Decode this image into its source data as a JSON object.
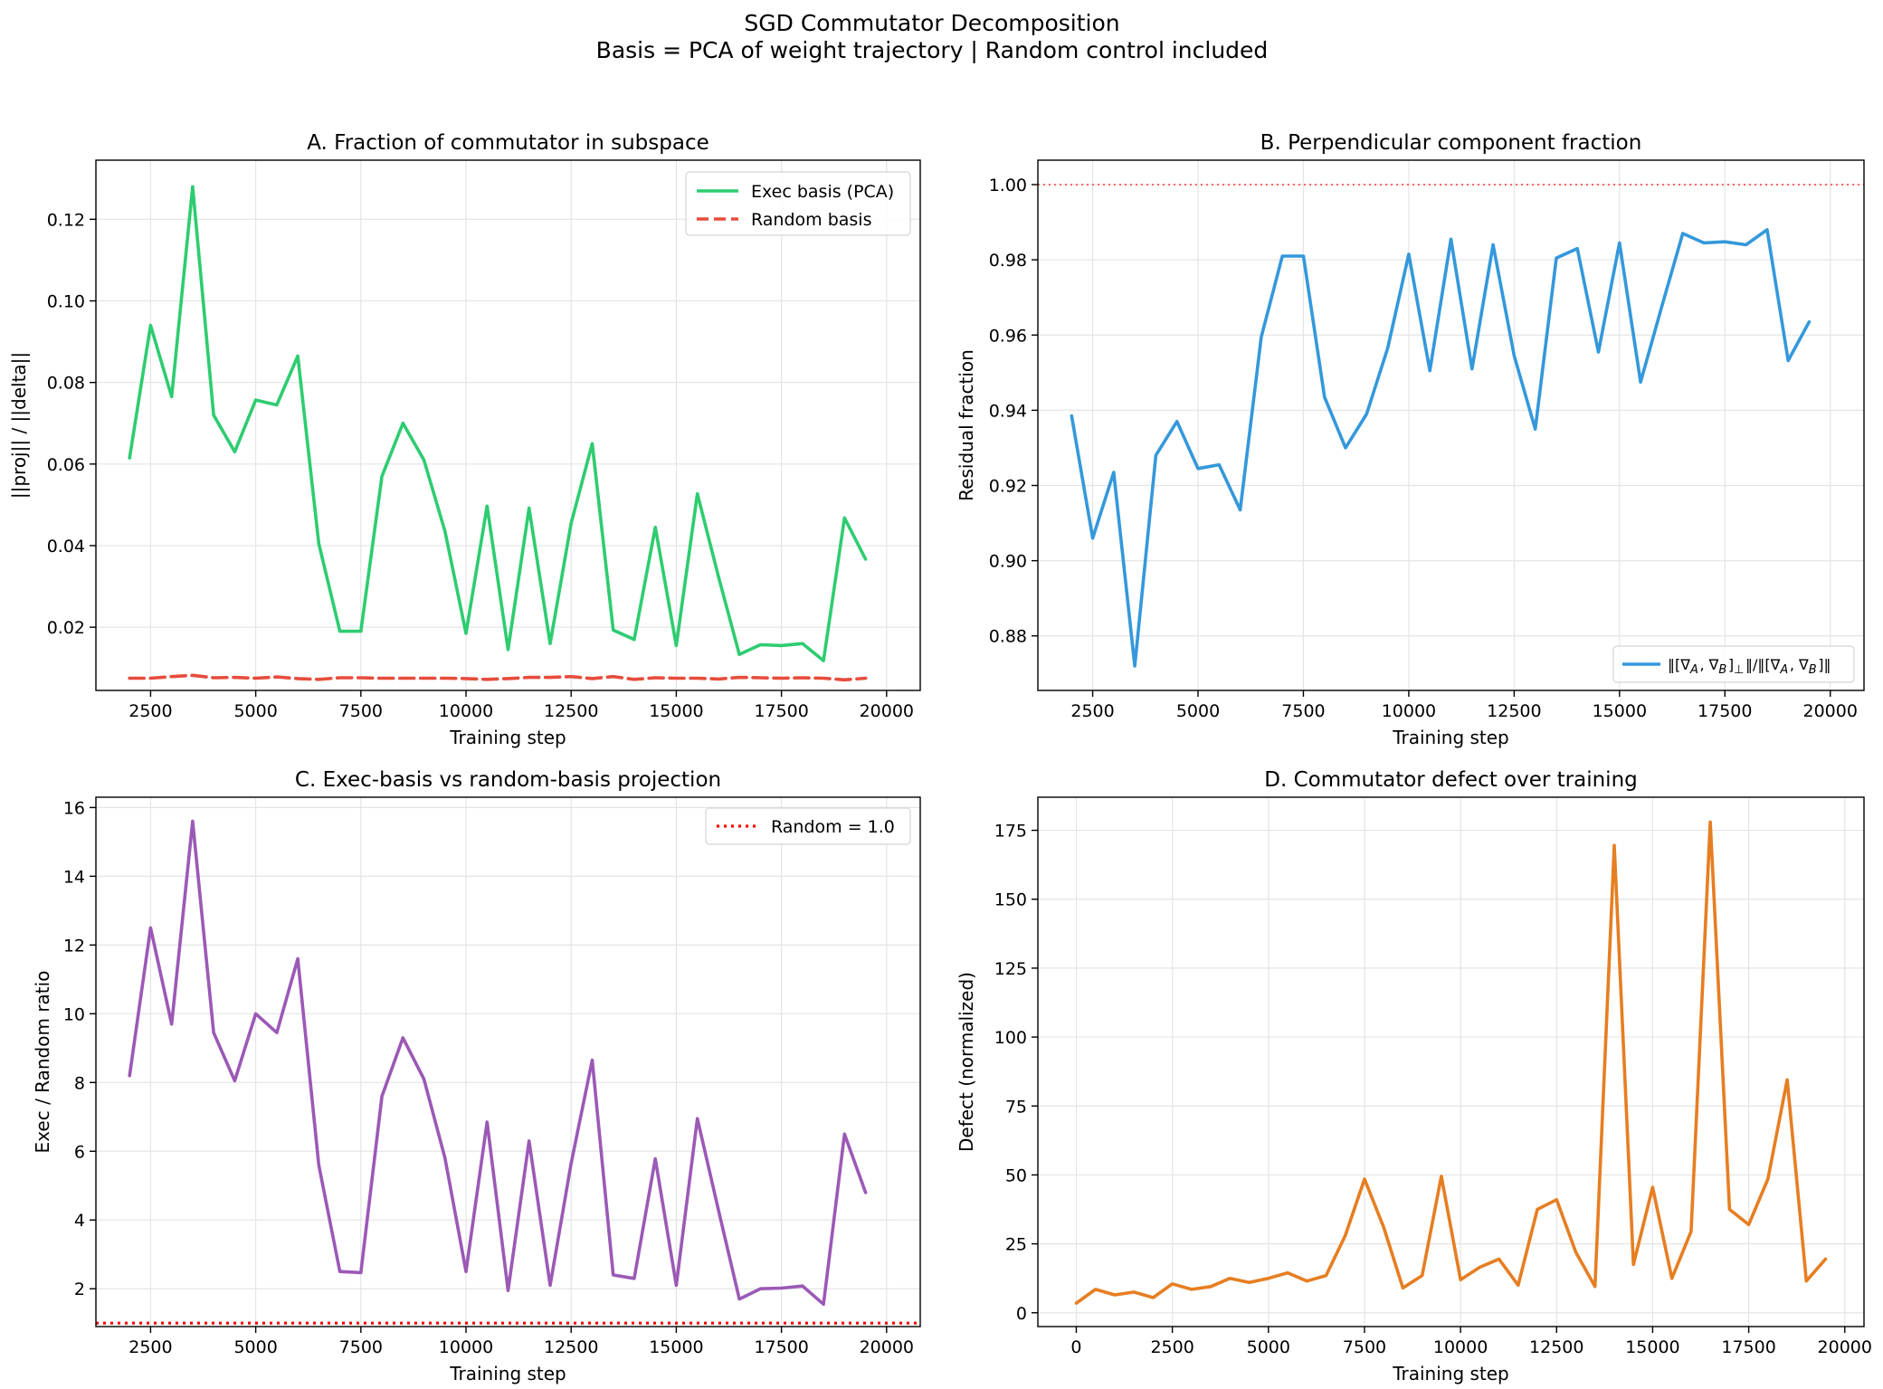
{
  "suptitle": [
    "SGD Commutator Decomposition",
    "Basis = PCA of weight trajectory | Random control included"
  ],
  "chart_data": [
    {
      "id": "A",
      "type": "line",
      "title": "A. Fraction of commutator in subspace",
      "xlabel": "Training step",
      "ylabel": "||proj|| / ||delta||",
      "xlim": [
        1200,
        20800
      ],
      "ylim": [
        0.0045,
        0.1345
      ],
      "xticks": [
        2500,
        5000,
        7500,
        10000,
        12500,
        15000,
        17500,
        20000
      ],
      "xtick_labels": [
        "2500",
        "5000",
        "7500",
        "10000",
        "12500",
        "15000",
        "17500",
        "20000"
      ],
      "yticks": [
        0.02,
        0.04,
        0.06,
        0.08,
        0.1,
        0.12
      ],
      "ytick_labels": [
        "0.02",
        "0.04",
        "0.06",
        "0.08",
        "0.10",
        "0.12"
      ],
      "legend_position": "upper right",
      "series": [
        {
          "name": "Exec basis (PCA)",
          "color": "#2ecc71",
          "style": "solid",
          "x": [
            2000,
            2500,
            3000,
            3500,
            4000,
            4500,
            5000,
            5500,
            6000,
            6500,
            7000,
            7500,
            8000,
            8500,
            9000,
            9500,
            10000,
            10500,
            11000,
            11500,
            12000,
            12500,
            13000,
            13500,
            14000,
            14500,
            15000,
            15500,
            16000,
            16500,
            17000,
            17500,
            18000,
            18500,
            19000,
            19500
          ],
          "y": [
            0.0615,
            0.094,
            0.0765,
            0.128,
            0.072,
            0.063,
            0.0757,
            0.0745,
            0.0865,
            0.0405,
            0.019,
            0.019,
            0.057,
            0.07,
            0.061,
            0.0435,
            0.0185,
            0.0497,
            0.0145,
            0.0492,
            0.016,
            0.0455,
            0.065,
            0.0193,
            0.017,
            0.0445,
            0.0155,
            0.0527,
            0.0325,
            0.0133,
            0.0157,
            0.0155,
            0.016,
            0.0118,
            0.0468,
            0.0367
          ]
        },
        {
          "name": "Random basis",
          "color": "#e74c3c",
          "style": "dashed",
          "x": [
            2000,
            2500,
            3000,
            3500,
            4000,
            4500,
            5000,
            5500,
            6000,
            6500,
            7000,
            7500,
            8000,
            8500,
            9000,
            9500,
            10000,
            10500,
            11000,
            11500,
            12000,
            12500,
            13000,
            13500,
            14000,
            14500,
            15000,
            15500,
            16000,
            16500,
            17000,
            17500,
            18000,
            18500,
            19000,
            19500
          ],
          "y": [
            0.0075,
            0.0075,
            0.0079,
            0.0082,
            0.0076,
            0.0077,
            0.0075,
            0.0078,
            0.0074,
            0.0072,
            0.0076,
            0.0076,
            0.0075,
            0.0075,
            0.0075,
            0.0075,
            0.0074,
            0.0072,
            0.0074,
            0.0077,
            0.0077,
            0.0079,
            0.0074,
            0.0079,
            0.0072,
            0.0076,
            0.0075,
            0.0075,
            0.0073,
            0.0077,
            0.0076,
            0.0075,
            0.0076,
            0.0075,
            0.0071,
            0.0075
          ]
        }
      ]
    },
    {
      "id": "B",
      "type": "line",
      "title": "B. Perpendicular component fraction",
      "xlabel": "Training step",
      "ylabel": "Residual fraction",
      "xlim": [
        1200,
        20800
      ],
      "ylim": [
        0.8655,
        1.0065
      ],
      "xticks": [
        2500,
        5000,
        7500,
        10000,
        12500,
        15000,
        17500,
        20000
      ],
      "xtick_labels": [
        "2500",
        "5000",
        "7500",
        "10000",
        "12500",
        "15000",
        "17500",
        "20000"
      ],
      "yticks": [
        0.88,
        0.9,
        0.92,
        0.94,
        0.96,
        0.98,
        1.0
      ],
      "ytick_labels": [
        "0.88",
        "0.90",
        "0.92",
        "0.94",
        "0.96",
        "0.98",
        "1.00"
      ],
      "reference_line": {
        "y": 1.0,
        "color": "#ff0000",
        "style": "dotted"
      },
      "legend_position": "lower right",
      "series": [
        {
          "name": "‖[∇A, ∇B]⊥‖/‖[∇A, ∇B]‖",
          "color": "#3498db",
          "style": "solid",
          "x": [
            2000,
            2500,
            3000,
            3500,
            4000,
            4500,
            5000,
            5500,
            6000,
            6500,
            7000,
            7500,
            8000,
            8500,
            9000,
            9500,
            10000,
            10500,
            11000,
            11500,
            12000,
            12500,
            13000,
            13500,
            14000,
            14500,
            15000,
            15500,
            16000,
            16500,
            17000,
            17500,
            18000,
            18500,
            19000,
            19500
          ],
          "y": [
            0.9385,
            0.906,
            0.9235,
            0.872,
            0.928,
            0.937,
            0.9245,
            0.9255,
            0.9135,
            0.9595,
            0.981,
            0.981,
            0.9435,
            0.93,
            0.939,
            0.9565,
            0.9815,
            0.9505,
            0.9855,
            0.951,
            0.984,
            0.9545,
            0.935,
            0.9805,
            0.983,
            0.9555,
            0.9845,
            0.9475,
            0.9675,
            0.987,
            0.9845,
            0.9848,
            0.984,
            0.988,
            0.9532,
            0.9635
          ]
        }
      ]
    },
    {
      "id": "C",
      "type": "line",
      "title": "C. Exec-basis vs random-basis projection",
      "xlabel": "Training step",
      "ylabel": "Exec / Random ratio",
      "xlim": [
        1200,
        20800
      ],
      "ylim": [
        0.9,
        16.3
      ],
      "xticks": [
        2500,
        5000,
        7500,
        10000,
        12500,
        15000,
        17500,
        20000
      ],
      "xtick_labels": [
        "2500",
        "5000",
        "7500",
        "10000",
        "12500",
        "15000",
        "17500",
        "20000"
      ],
      "yticks": [
        2,
        4,
        6,
        8,
        10,
        12,
        14,
        16
      ],
      "ytick_labels": [
        "2",
        "4",
        "6",
        "8",
        "10",
        "12",
        "14",
        "16"
      ],
      "reference_line": {
        "y": 1.0,
        "color": "#ff0000",
        "style": "dotted",
        "label": "Random = 1.0"
      },
      "legend_position": "upper right",
      "series": [
        {
          "name": "Exec / Random",
          "color": "#9b59b6",
          "style": "solid",
          "x": [
            2000,
            2500,
            3000,
            3500,
            4000,
            4500,
            5000,
            5500,
            6000,
            6500,
            7000,
            7500,
            8000,
            8500,
            9000,
            9500,
            10000,
            10500,
            11000,
            11500,
            12000,
            12500,
            13000,
            13500,
            14000,
            14500,
            15000,
            15500,
            16000,
            16500,
            17000,
            17500,
            18000,
            18500,
            19000,
            19500
          ],
          "y": [
            8.2,
            12.5,
            9.7,
            15.6,
            9.45,
            8.05,
            10.0,
            9.45,
            11.6,
            5.6,
            2.5,
            2.47,
            7.6,
            9.3,
            8.1,
            5.8,
            2.5,
            6.85,
            1.95,
            6.3,
            2.1,
            5.65,
            8.65,
            2.4,
            2.3,
            5.78,
            2.1,
            6.95,
            4.3,
            1.7,
            2.0,
            2.02,
            2.08,
            1.55,
            6.5,
            4.8
          ]
        }
      ]
    },
    {
      "id": "D",
      "type": "line",
      "title": "D. Commutator defect over training",
      "xlabel": "Training step",
      "ylabel": "Defect (normalized)",
      "xlim": [
        -1000,
        20500
      ],
      "ylim": [
        -5,
        187
      ],
      "xticks": [
        0,
        2500,
        5000,
        7500,
        10000,
        12500,
        15000,
        17500,
        20000
      ],
      "xtick_labels": [
        "0",
        "2500",
        "5000",
        "7500",
        "10000",
        "12500",
        "15000",
        "17500",
        "20000"
      ],
      "yticks": [
        0,
        25,
        50,
        75,
        100,
        125,
        150,
        175
      ],
      "ytick_labels": [
        "0",
        "25",
        "50",
        "75",
        "100",
        "125",
        "150",
        "175"
      ],
      "legend_position": "none",
      "series": [
        {
          "name": "Defect",
          "color": "#e67e22",
          "style": "solid",
          "x": [
            0,
            500,
            1000,
            1500,
            2000,
            2500,
            3000,
            3500,
            4000,
            4500,
            5000,
            5500,
            6000,
            6500,
            7000,
            7500,
            8000,
            8500,
            9000,
            9500,
            10000,
            10500,
            11000,
            11500,
            12000,
            12500,
            13000,
            13500,
            14000,
            14500,
            15000,
            15500,
            16000,
            16500,
            17000,
            17500,
            18000,
            18500,
            19000,
            19500
          ],
          "y": [
            3.5,
            8.5,
            6.5,
            7.5,
            5.5,
            10.5,
            8.5,
            9.5,
            12.5,
            11.0,
            12.5,
            14.5,
            11.5,
            13.5,
            28.0,
            48.5,
            31.0,
            9.0,
            13.5,
            49.5,
            12.0,
            16.5,
            19.5,
            10.0,
            37.5,
            41.0,
            22.0,
            9.5,
            169.5,
            17.5,
            45.5,
            12.5,
            29.5,
            178.0,
            37.5,
            32.0,
            48.5,
            84.5,
            11.5,
            19.5
          ]
        }
      ]
    }
  ]
}
